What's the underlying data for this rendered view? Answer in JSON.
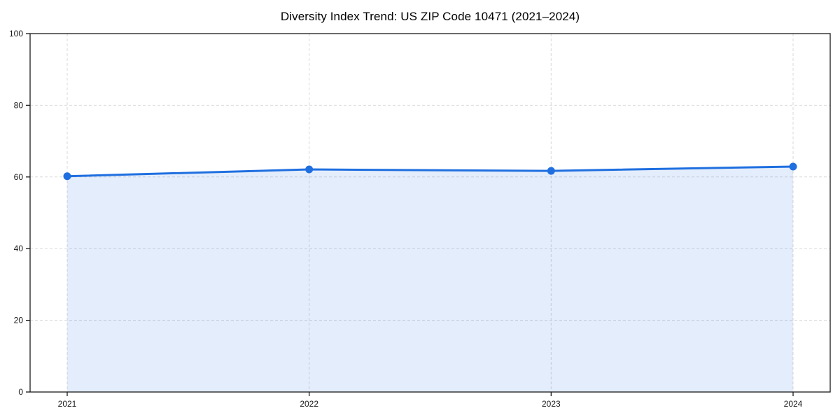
{
  "page": {
    "background": "#ffffff"
  },
  "chart_data": {
    "type": "area",
    "title": "Diversity Index Trend: US ZIP Code 10471 (2021–2024)",
    "categories": [
      "2021",
      "2022",
      "2023",
      "2024"
    ],
    "series": [
      {
        "name": "Diversity Index",
        "values": [
          60.2,
          62.1,
          61.7,
          62.9
        ]
      }
    ],
    "xlabel": "",
    "ylabel": "",
    "ylim": [
      0,
      100
    ],
    "yticks": [
      0,
      20,
      40,
      60,
      80,
      100
    ],
    "grid": true,
    "grid_style": "dashed",
    "legend": "none",
    "marker": "circle",
    "marker_radius": 5.5,
    "line_width": 3,
    "colors": {
      "line": "#1f6fe0",
      "fill": "#1f6fe0",
      "fill_opacity": 0.12,
      "grid": "#d9d9d9",
      "spine": "#1a1a1a",
      "tick_text": "#1a1a1a",
      "title_text": "#0d0d0d"
    }
  }
}
